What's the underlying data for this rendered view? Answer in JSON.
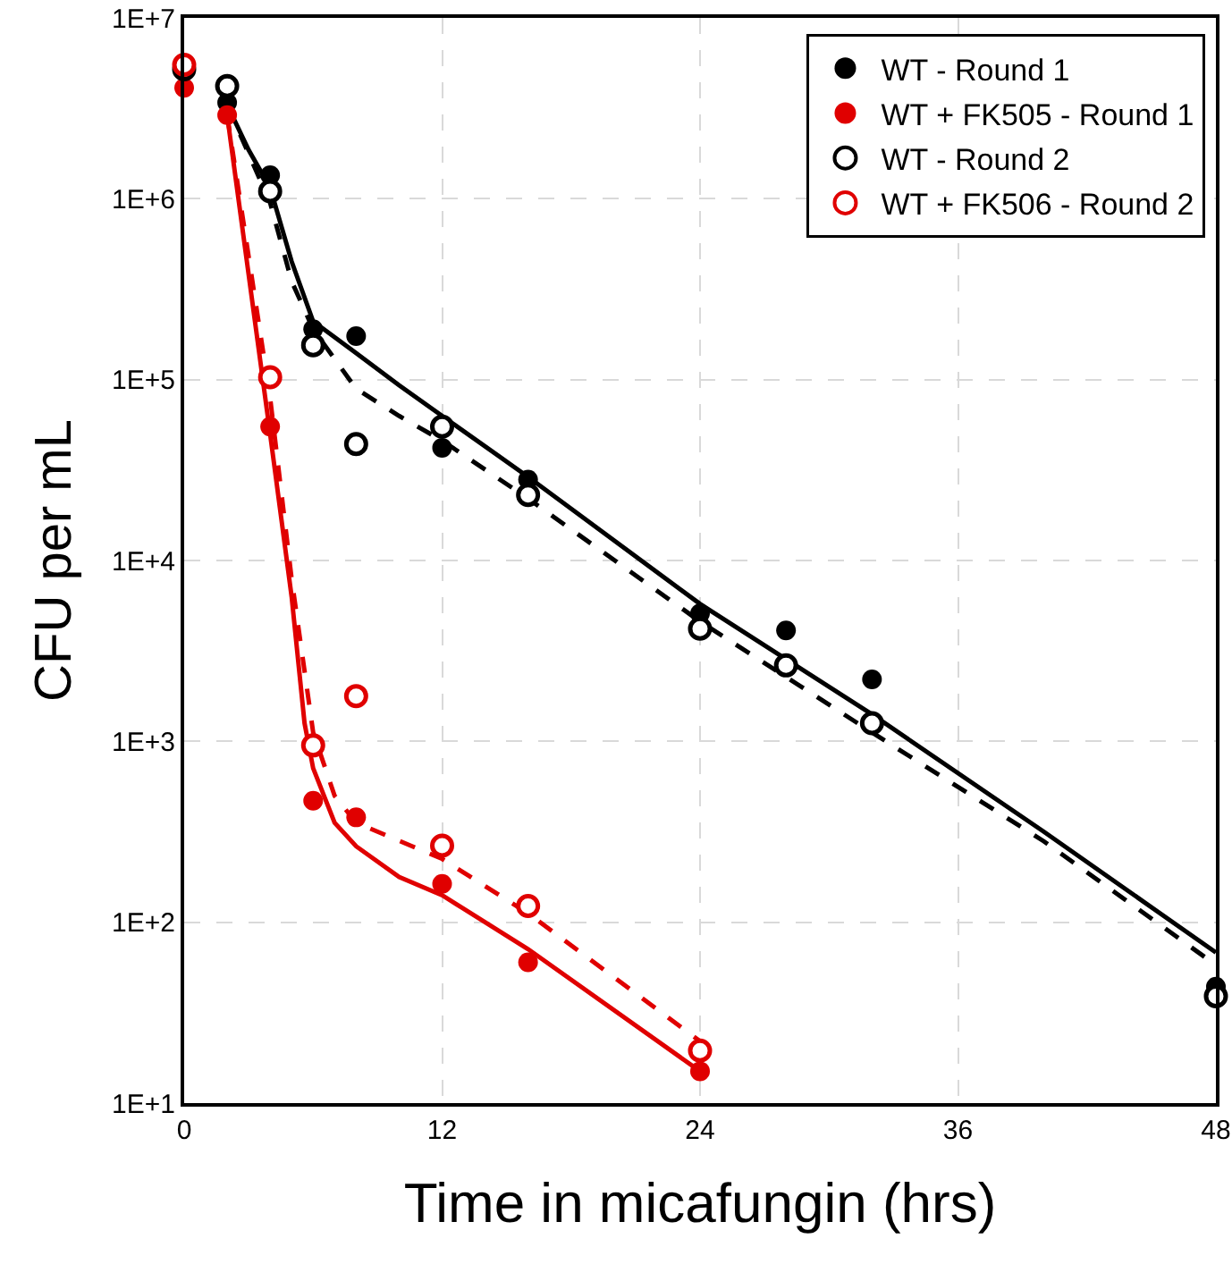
{
  "chart_data": {
    "type": "scatter",
    "xlabel": "Time in micafungin (hrs)",
    "ylabel": "CFU per mL",
    "xlim": [
      0,
      48
    ],
    "xticks": [
      0,
      12,
      24,
      36,
      48
    ],
    "ylim": [
      10,
      10000000
    ],
    "yticks": [
      {
        "value": 10,
        "label": "1E+1"
      },
      {
        "value": 100,
        "label": "1E+2"
      },
      {
        "value": 1000,
        "label": "1E+3"
      },
      {
        "value": 10000,
        "label": "1E+4"
      },
      {
        "value": 100000,
        "label": "1E+5"
      },
      {
        "value": 1000000,
        "label": "1E+6"
      },
      {
        "value": 10000000,
        "label": "1E+7"
      }
    ],
    "log": true,
    "grid": true,
    "legend": "top right",
    "series": [
      {
        "type": "line",
        "color": "#000000",
        "line_style": "solid",
        "marker": "none",
        "x": [
          2,
          3,
          4,
          5,
          6,
          8,
          10,
          12,
          16,
          24,
          32,
          40,
          48
        ],
        "values": [
          3300000,
          1860000,
          1150000,
          450000,
          210000,
          140000,
          93000,
          63000,
          29000,
          5750,
          1410,
          316,
          68
        ]
      },
      {
        "type": "line",
        "color": "#000000",
        "line_style": "dashed",
        "marker": "none",
        "x": [
          2,
          4,
          5,
          6,
          8,
          10,
          12,
          16,
          24,
          32,
          40,
          48
        ],
        "values": [
          3300000,
          950000,
          350000,
          190000,
          89000,
          63000,
          46000,
          22000,
          4600,
          1120,
          280,
          58
        ]
      },
      {
        "type": "line",
        "color": "#e00000",
        "line_style": "solid",
        "marker": "none",
        "x": [
          2,
          4,
          5,
          5.6,
          6,
          7,
          8,
          10,
          12,
          16,
          24
        ],
        "values": [
          2900000,
          50000,
          6300,
          1260,
          710,
          355,
          263,
          178,
          141,
          71,
          15
        ]
      },
      {
        "type": "line",
        "color": "#e00000",
        "line_style": "dashed",
        "marker": "none",
        "x": [
          2,
          4,
          5,
          6,
          7,
          8,
          12,
          16,
          24
        ],
        "values": [
          2900000,
          79000,
          7900,
          1120,
          500,
          355,
          224,
          112,
          22
        ]
      },
      {
        "name": "WT - Round 1",
        "color": "#000000",
        "marker": "circle",
        "x": [
          2,
          4,
          6,
          8,
          12,
          16,
          24,
          28,
          32,
          48
        ],
        "values": [
          3400000,
          1350000,
          190000,
          174000,
          42000,
          28000,
          5100,
          4100,
          2200,
          44
        ]
      },
      {
        "name": "WT + FK505 - Round 1",
        "color": "#e00000",
        "marker": "circle",
        "x": [
          0,
          2,
          4,
          6,
          8,
          12,
          16,
          24
        ],
        "values": [
          4100000,
          2900000,
          55000,
          470,
          380,
          163,
          60,
          15
        ]
      },
      {
        "name": "WT - Round 2",
        "color": "#000000",
        "marker": "circle-open",
        "x": [
          0,
          2,
          4,
          6,
          8,
          12,
          16,
          24,
          28,
          32,
          48
        ],
        "values": [
          5200000,
          4200000,
          1100000,
          155000,
          44000,
          55000,
          23000,
          4200,
          2630,
          1260,
          39
        ]
      },
      {
        "name": "WT + FK506 - Round 2",
        "color": "#e00000",
        "marker": "circle-open",
        "x": [
          0,
          2,
          4,
          6,
          8,
          12,
          16,
          24
        ],
        "values": [
          5500000,
          null,
          103000,
          950,
          1780,
          265,
          123,
          19.5
        ]
      }
    ]
  }
}
